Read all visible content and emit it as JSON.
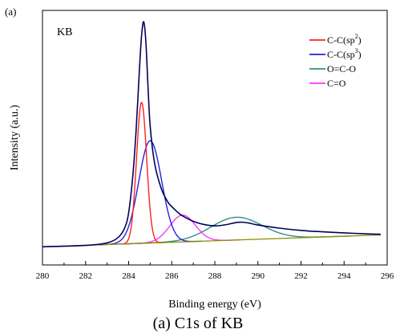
{
  "panel_label": "(a)",
  "caption": "(a) C1s of KB",
  "chart_data": {
    "type": "line",
    "sample_label": "KB",
    "xlabel": "Binding energy (eV)",
    "ylabel": "Intensity (a.u.)",
    "xlim": [
      280,
      296
    ],
    "ylim": [
      -0.08,
      1.04
    ],
    "x_ticks": [
      280,
      282,
      284,
      286,
      288,
      290,
      292,
      294,
      296
    ],
    "y_ticks_labeled": false,
    "grid": false,
    "legend_position": "top-right",
    "baseline": {
      "name": "background",
      "color": "#8c8c00",
      "x": [
        280,
        295.7
      ],
      "values": [
        0.0,
        0.052
      ]
    },
    "raw_spectrum": {
      "color": "#00005a",
      "x": [
        280,
        282,
        283,
        283.5,
        283.8,
        284.0,
        284.2,
        284.35,
        284.5,
        284.6,
        284.7,
        284.8,
        284.9,
        285.0,
        285.2,
        285.5,
        285.8,
        286.0,
        286.3,
        286.5,
        287.0,
        287.5,
        288.0,
        288.5,
        289.0,
        289.3,
        289.6,
        290,
        291,
        292,
        293,
        294,
        295,
        295.7
      ],
      "values": [
        0.0,
        0.006,
        0.017,
        0.04,
        0.08,
        0.15,
        0.32,
        0.52,
        0.78,
        0.93,
        0.99,
        0.9,
        0.7,
        0.53,
        0.37,
        0.26,
        0.2,
        0.177,
        0.15,
        0.136,
        0.112,
        0.098,
        0.092,
        0.097,
        0.107,
        0.108,
        0.104,
        0.096,
        0.082,
        0.072,
        0.066,
        0.061,
        0.057,
        0.055
      ]
    },
    "series": [
      {
        "name": "C-C(sp2)",
        "label_main": "C-C(sp",
        "label_sup": "2",
        "label_end": ")",
        "color": "#ff2020",
        "center": 284.6,
        "height": 0.62,
        "fwhm": 0.55
      },
      {
        "name": "C-C(sp3)",
        "label_main": "C-C(sp",
        "label_sup": "3",
        "label_end": ")",
        "color": "#2222dd",
        "center": 285.0,
        "height": 0.45,
        "fwhm": 1.25
      },
      {
        "name": "O=C-O",
        "label_main": "O=C-O",
        "label_sup": "",
        "label_end": "",
        "color": "#2f8f88",
        "center": 289.0,
        "height": 0.1,
        "fwhm": 2.8
      },
      {
        "name": "C=O",
        "label_main": "C=O",
        "label_sup": "",
        "label_end": "",
        "color": "#ff33ff",
        "center": 286.5,
        "height": 0.118,
        "fwhm": 1.4
      }
    ]
  }
}
